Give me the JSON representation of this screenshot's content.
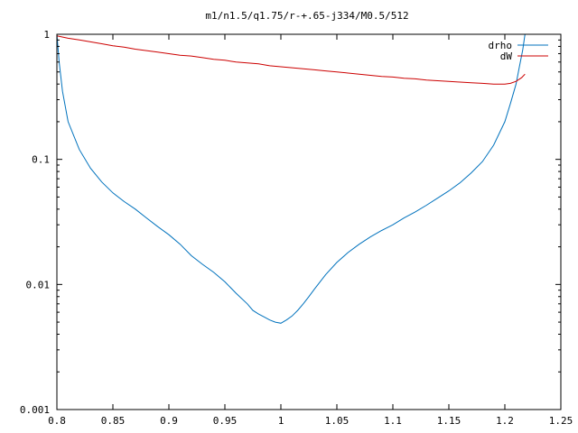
{
  "chart_data": {
    "type": "line",
    "title": "m1/n1.5/q1.75/r-+.65-j334/M0.5/512",
    "xlabel": "",
    "ylabel": "",
    "xlim": [
      0.8,
      1.25
    ],
    "ylim": [
      0.001,
      1
    ],
    "yscale": "log",
    "grid": false,
    "legend_position": "top-right",
    "x_ticks": [
      {
        "value": 0.8,
        "label": "0.8"
      },
      {
        "value": 0.85,
        "label": "0.85"
      },
      {
        "value": 0.9,
        "label": "0.9"
      },
      {
        "value": 0.95,
        "label": "0.95"
      },
      {
        "value": 1.0,
        "label": "1"
      },
      {
        "value": 1.05,
        "label": "1.05"
      },
      {
        "value": 1.1,
        "label": "1.1"
      },
      {
        "value": 1.15,
        "label": "1.15"
      },
      {
        "value": 1.2,
        "label": "1.2"
      },
      {
        "value": 1.25,
        "label": "1.25"
      }
    ],
    "y_ticks": [
      {
        "value": 1,
        "label": "1"
      },
      {
        "value": 0.1,
        "label": "0.1"
      },
      {
        "value": 0.01,
        "label": "0.01"
      },
      {
        "value": 0.001,
        "label": "0.001"
      }
    ],
    "series": [
      {
        "name": "drho",
        "color": "#0072bd",
        "x": [
          0.8,
          0.802,
          0.805,
          0.81,
          0.82,
          0.83,
          0.84,
          0.85,
          0.86,
          0.87,
          0.88,
          0.89,
          0.9,
          0.91,
          0.92,
          0.93,
          0.94,
          0.95,
          0.96,
          0.97,
          0.975,
          0.98,
          0.985,
          0.99,
          0.995,
          1.0,
          1.005,
          1.01,
          1.015,
          1.02,
          1.025,
          1.03,
          1.035,
          1.04,
          1.05,
          1.06,
          1.07,
          1.08,
          1.09,
          1.1,
          1.11,
          1.12,
          1.13,
          1.14,
          1.15,
          1.16,
          1.17,
          1.18,
          1.19,
          1.2,
          1.205,
          1.21,
          1.213,
          1.216,
          1.218
        ],
        "y": [
          1.0,
          0.6,
          0.35,
          0.2,
          0.12,
          0.085,
          0.066,
          0.054,
          0.046,
          0.04,
          0.034,
          0.029,
          0.025,
          0.021,
          0.017,
          0.0145,
          0.0125,
          0.0105,
          0.0085,
          0.007,
          0.0062,
          0.0058,
          0.0055,
          0.0052,
          0.005,
          0.0049,
          0.0052,
          0.0056,
          0.0062,
          0.007,
          0.008,
          0.0092,
          0.0105,
          0.012,
          0.015,
          0.018,
          0.021,
          0.024,
          0.027,
          0.03,
          0.034,
          0.038,
          0.043,
          0.049,
          0.056,
          0.065,
          0.078,
          0.096,
          0.13,
          0.2,
          0.28,
          0.4,
          0.55,
          0.75,
          1.0
        ]
      },
      {
        "name": "dW",
        "color": "#cc0000",
        "x": [
          0.8,
          0.81,
          0.82,
          0.83,
          0.84,
          0.85,
          0.86,
          0.87,
          0.88,
          0.89,
          0.9,
          0.91,
          0.92,
          0.93,
          0.94,
          0.95,
          0.96,
          0.97,
          0.98,
          0.99,
          1.0,
          1.01,
          1.02,
          1.03,
          1.04,
          1.05,
          1.06,
          1.07,
          1.08,
          1.09,
          1.1,
          1.11,
          1.12,
          1.13,
          1.14,
          1.15,
          1.16,
          1.17,
          1.18,
          1.19,
          1.2,
          1.205,
          1.21,
          1.215,
          1.218
        ],
        "y": [
          0.97,
          0.93,
          0.9,
          0.87,
          0.84,
          0.81,
          0.79,
          0.76,
          0.74,
          0.72,
          0.7,
          0.68,
          0.67,
          0.65,
          0.63,
          0.62,
          0.6,
          0.59,
          0.58,
          0.56,
          0.55,
          0.54,
          0.53,
          0.52,
          0.51,
          0.5,
          0.49,
          0.48,
          0.47,
          0.46,
          0.455,
          0.445,
          0.44,
          0.43,
          0.425,
          0.42,
          0.415,
          0.41,
          0.405,
          0.4,
          0.4,
          0.405,
          0.42,
          0.45,
          0.48
        ]
      }
    ]
  }
}
